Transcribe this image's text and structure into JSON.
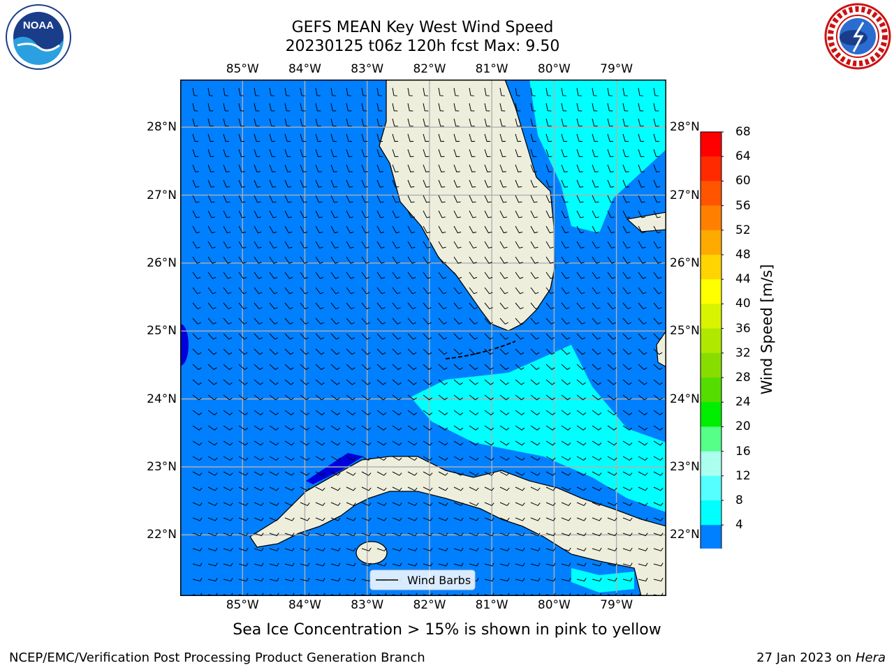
{
  "title_line1": "GEFS MEAN Key West Wind Speed",
  "title_line2": "20230125 t06z 120h fcst   Max: 9.50",
  "logos": {
    "left": "noaa-logo",
    "right": "nws-logo",
    "noaa_text": "NOAA"
  },
  "map": {
    "lon_labels": [
      "85°W",
      "84°W",
      "83°W",
      "82°W",
      "81°W",
      "80°W",
      "79°W"
    ],
    "lat_labels": [
      "28°N",
      "27°N",
      "26°N",
      "25°N",
      "24°N",
      "23°N",
      "22°N"
    ],
    "lon_values": [
      -85,
      -84,
      -83,
      -82,
      -81,
      -80,
      -79
    ],
    "lat_values": [
      28,
      27,
      26,
      25,
      24,
      23,
      22
    ],
    "lon_range": [
      -86,
      -78.2
    ],
    "lat_range": [
      21.1,
      28.7
    ],
    "legend_label": "Wind Barbs"
  },
  "colorbar": {
    "title": "Wind Speed [m/s]",
    "ticks": [
      "68",
      "64",
      "60",
      "56",
      "52",
      "48",
      "44",
      "40",
      "36",
      "32",
      "28",
      "24",
      "20",
      "16",
      "12",
      "8",
      "4"
    ],
    "colors_top_to_bottom": [
      "#ff0000",
      "#ff2a00",
      "#ff5500",
      "#ff8000",
      "#ffaa00",
      "#ffd400",
      "#ffff00",
      "#d8f400",
      "#b0e800",
      "#88dd00",
      "#55dd00",
      "#00ee00",
      "#55ff88",
      "#aaffee",
      "#55ffff",
      "#00ffff",
      "#0080ff"
    ],
    "extend_color": "#0000ee"
  },
  "colors": {
    "ocean_main": "#0080ff",
    "ocean_strong": "#00ffff",
    "ocean_weak": "#0000dd",
    "land": "#eeeedd",
    "grid": "#b0b0b0"
  },
  "caption": "Sea Ice Concentration > 15% is shown in pink to yellow",
  "footer_left": "NCEP/EMC/Verification Post Processing Product Generation Branch",
  "footer_date": "27 Jan 2023 on ",
  "footer_host": "Hera"
}
